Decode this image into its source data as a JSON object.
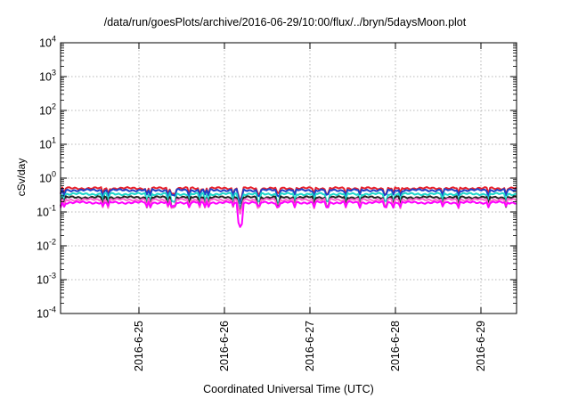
{
  "chart_data": {
    "type": "line",
    "title": "/data/run/goesPlots/archive/2016-06-29/10:00/flux/../bryn/5daysMoon.plot",
    "xlabel": "Coordinated Universal Time (UTC)",
    "ylabel": "cSv/day",
    "x_axis": {
      "type": "date",
      "range": [
        "2016-06-24T02:00",
        "2016-06-29T10:00"
      ],
      "ticks": [
        "2016-06-25",
        "2016-06-26",
        "2016-06-27",
        "2016-06-28",
        "2016-06-29"
      ],
      "tick_labels": [
        "2016-6-25",
        "2016-6-26",
        "2016-6-27",
        "2016-6-28",
        "2016-6-29"
      ]
    },
    "y_axis": {
      "scale": "log",
      "range": [
        0.0001,
        10000
      ],
      "ticks": [
        0.0001,
        0.001,
        0.01,
        0.1,
        1,
        10,
        100,
        1000,
        10000
      ],
      "tick_labels": [
        {
          "base": "10",
          "exp": "-4"
        },
        {
          "base": "10",
          "exp": "-3"
        },
        {
          "base": "10",
          "exp": "-2"
        },
        {
          "base": "10",
          "exp": "-1"
        },
        {
          "base": "10",
          "exp": "0"
        },
        {
          "base": "10",
          "exp": "1"
        },
        {
          "base": "10",
          "exp": "2"
        },
        {
          "base": "10",
          "exp": "3"
        },
        {
          "base": "10",
          "exp": "4"
        }
      ]
    },
    "grid": true,
    "legend": "none",
    "series": [
      {
        "color": "#e8202a",
        "approx_level": 0.5,
        "dip_depth": 0.7
      },
      {
        "color": "#1e40c8",
        "approx_level": 0.44,
        "dip_depth": 0.7
      },
      {
        "color": "#20d8cc",
        "approx_level": 0.34,
        "dip_depth": 0.6
      },
      {
        "color": "#222222",
        "approx_level": 0.27,
        "dip_depth": 0.55
      },
      {
        "color": "#ff66cc",
        "approx_level": 0.23,
        "dip_depth": 0.6
      },
      {
        "color": "#ff00ff",
        "approx_level": 0.19,
        "dip_depth": 0.75
      }
    ]
  }
}
